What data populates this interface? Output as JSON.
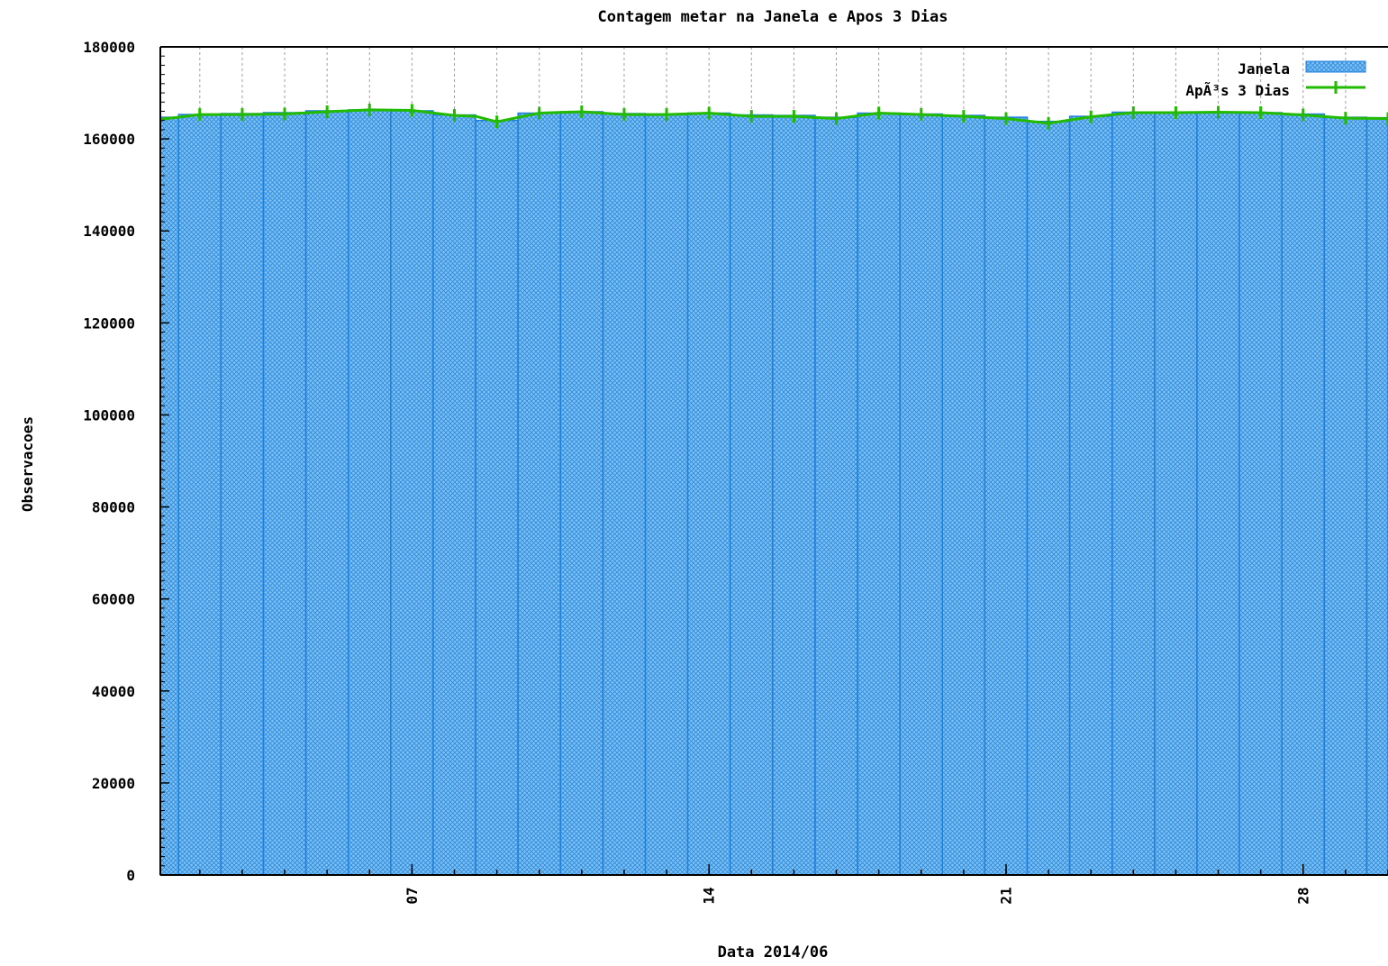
{
  "chart_data": {
    "type": "bar",
    "title": "Contagem metar na Janela e Apos 3 Dias",
    "xlabel": "Data 2014/06",
    "ylabel": "Observacoes",
    "ylim": [
      0,
      180000
    ],
    "yticks": [
      0,
      20000,
      40000,
      60000,
      80000,
      100000,
      120000,
      140000,
      160000,
      180000
    ],
    "xticks": [
      {
        "label": "07",
        "day": 7
      },
      {
        "label": "14",
        "day": 14
      },
      {
        "label": "21",
        "day": 21
      },
      {
        "label": "28",
        "day": 28
      }
    ],
    "xlim_days": [
      1.07,
      30.0
    ],
    "grid": true,
    "legend_position": "top-right",
    "colors": {
      "bar_fill": "#7fc0f0",
      "bar_hatch": "#2a8ae0",
      "bar_edge": "#1e7fdc",
      "line": "#22bb00"
    },
    "days": [
      1,
      2,
      3,
      4,
      5,
      6,
      7,
      8,
      9,
      10,
      11,
      12,
      13,
      14,
      15,
      16,
      17,
      18,
      19,
      20,
      21,
      22,
      23,
      24,
      25,
      26,
      27,
      28,
      29,
      30
    ],
    "series": [
      {
        "name": "Janela",
        "kind": "bar",
        "values": [
          164700,
          165300,
          165500,
          165700,
          166100,
          166300,
          166100,
          165200,
          164000,
          165600,
          165900,
          165500,
          165400,
          165600,
          165200,
          165100,
          164700,
          165600,
          165400,
          165100,
          164700,
          163800,
          164900,
          165800,
          165800,
          165800,
          165700,
          165400,
          164700,
          164600
        ]
      },
      {
        "name": "ApÃ³s 3 Dias",
        "kind": "line",
        "x": [
          1.0,
          1.5,
          2.0,
          3.0,
          4.0,
          5.0,
          6.0,
          7.0,
          8.0,
          8.5,
          9.0,
          10.0,
          11.0,
          12.0,
          13.0,
          14.0,
          15.0,
          16.0,
          17.0,
          18.0,
          19.0,
          20.0,
          21.0,
          22.0,
          23.0,
          24.0,
          25.0,
          26.0,
          27.0,
          28.0,
          29.0,
          30.0
        ],
        "values": [
          164300,
          164700,
          165300,
          165300,
          165400,
          165900,
          166300,
          166200,
          165100,
          164900,
          163700,
          165600,
          165900,
          165300,
          165300,
          165600,
          164900,
          164900,
          164400,
          165600,
          165300,
          164900,
          164400,
          163400,
          164800,
          165700,
          165700,
          165800,
          165700,
          165200,
          164500,
          164400
        ]
      }
    ]
  }
}
